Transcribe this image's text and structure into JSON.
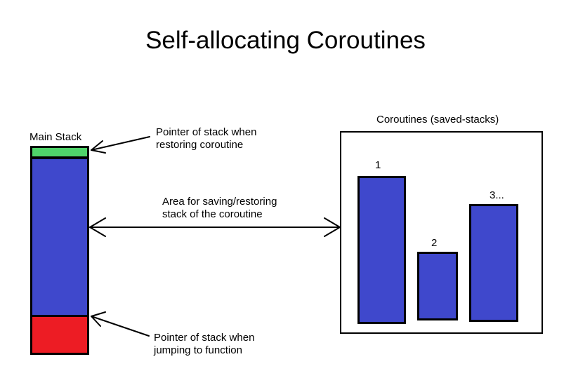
{
  "title": "Self-allocating Coroutines",
  "main_stack": {
    "label": "Main Stack",
    "colors": {
      "top": "#4fd36a",
      "middle": "#3f48cc",
      "bottom": "#ed1c24"
    }
  },
  "annotations": {
    "restore_pointer": [
      "Pointer of stack when",
      "restoring coroutine"
    ],
    "save_area": [
      "Area for saving/restoring",
      "stack of the coroutine"
    ],
    "jump_pointer": [
      "Pointer of stack when",
      "jumping to function"
    ]
  },
  "coroutines": {
    "label": "Coroutines (saved-stacks)",
    "items": [
      {
        "label": "1",
        "color": "#3f48cc"
      },
      {
        "label": "2",
        "color": "#3f48cc"
      },
      {
        "label": "3...",
        "color": "#3f48cc"
      }
    ]
  }
}
